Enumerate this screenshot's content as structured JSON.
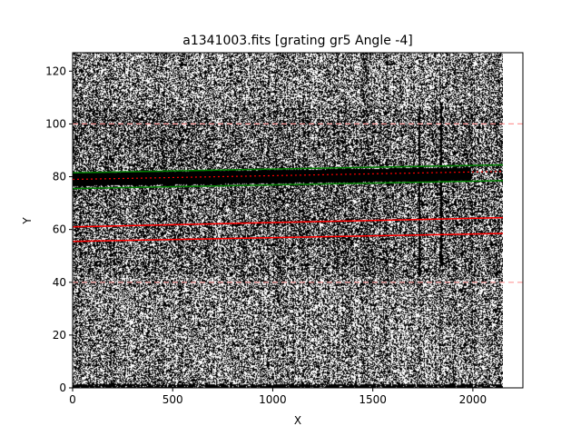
{
  "chart_data": {
    "type": "image",
    "title": "a1341003.fits [grating gr5 Angle -4]",
    "xlabel": "X",
    "ylabel": "Y",
    "xlim": [
      0,
      2250
    ],
    "ylim": [
      0,
      127
    ],
    "xticks": [
      0,
      500,
      1000,
      1500,
      2000
    ],
    "yticks": [
      0,
      20,
      40,
      60,
      80,
      100,
      120
    ],
    "image_x_extent": [
      0,
      2150
    ],
    "image_y_extent": [
      0,
      127
    ],
    "colormap": "gray",
    "spectrum_trace": {
      "x_start": 0,
      "x_end": 1990,
      "y_start": 79,
      "y_end": 81,
      "half_width": 2.5
    },
    "series": [
      {
        "role": "source aperture upper",
        "color": "#008000",
        "style": "solid",
        "x": [
          0,
          2150
        ],
        "y": [
          81.5,
          84.5
        ]
      },
      {
        "role": "source aperture lower",
        "color": "#008000",
        "style": "solid",
        "x": [
          0,
          2150
        ],
        "y": [
          75.5,
          78.5
        ]
      },
      {
        "role": "background band upper",
        "color": "#ff0000",
        "style": "solid",
        "x": [
          0,
          2150
        ],
        "y": [
          61,
          64.5
        ]
      },
      {
        "role": "background band lower",
        "color": "#ff0000",
        "style": "solid",
        "x": [
          0,
          2150
        ],
        "y": [
          55.5,
          58.5
        ]
      },
      {
        "role": "trace fit",
        "color": "#ff0000",
        "style": "dotted",
        "x": [
          0,
          2150
        ],
        "y": [
          79,
          82
        ]
      },
      {
        "role": "limit upper",
        "color": "#ff9a9a",
        "style": "dashed",
        "x": [
          0,
          2250
        ],
        "y": [
          100,
          100
        ]
      },
      {
        "role": "limit lower",
        "color": "#ff9a9a",
        "style": "dashed",
        "x": [
          0,
          2250
        ],
        "y": [
          40,
          40
        ]
      }
    ],
    "vertical_features": [
      {
        "x": 1730,
        "y_range": [
          42,
          105
        ]
      },
      {
        "x": 1838,
        "y_range": [
          46,
          108
        ]
      }
    ],
    "grid": false,
    "legend": "none"
  }
}
